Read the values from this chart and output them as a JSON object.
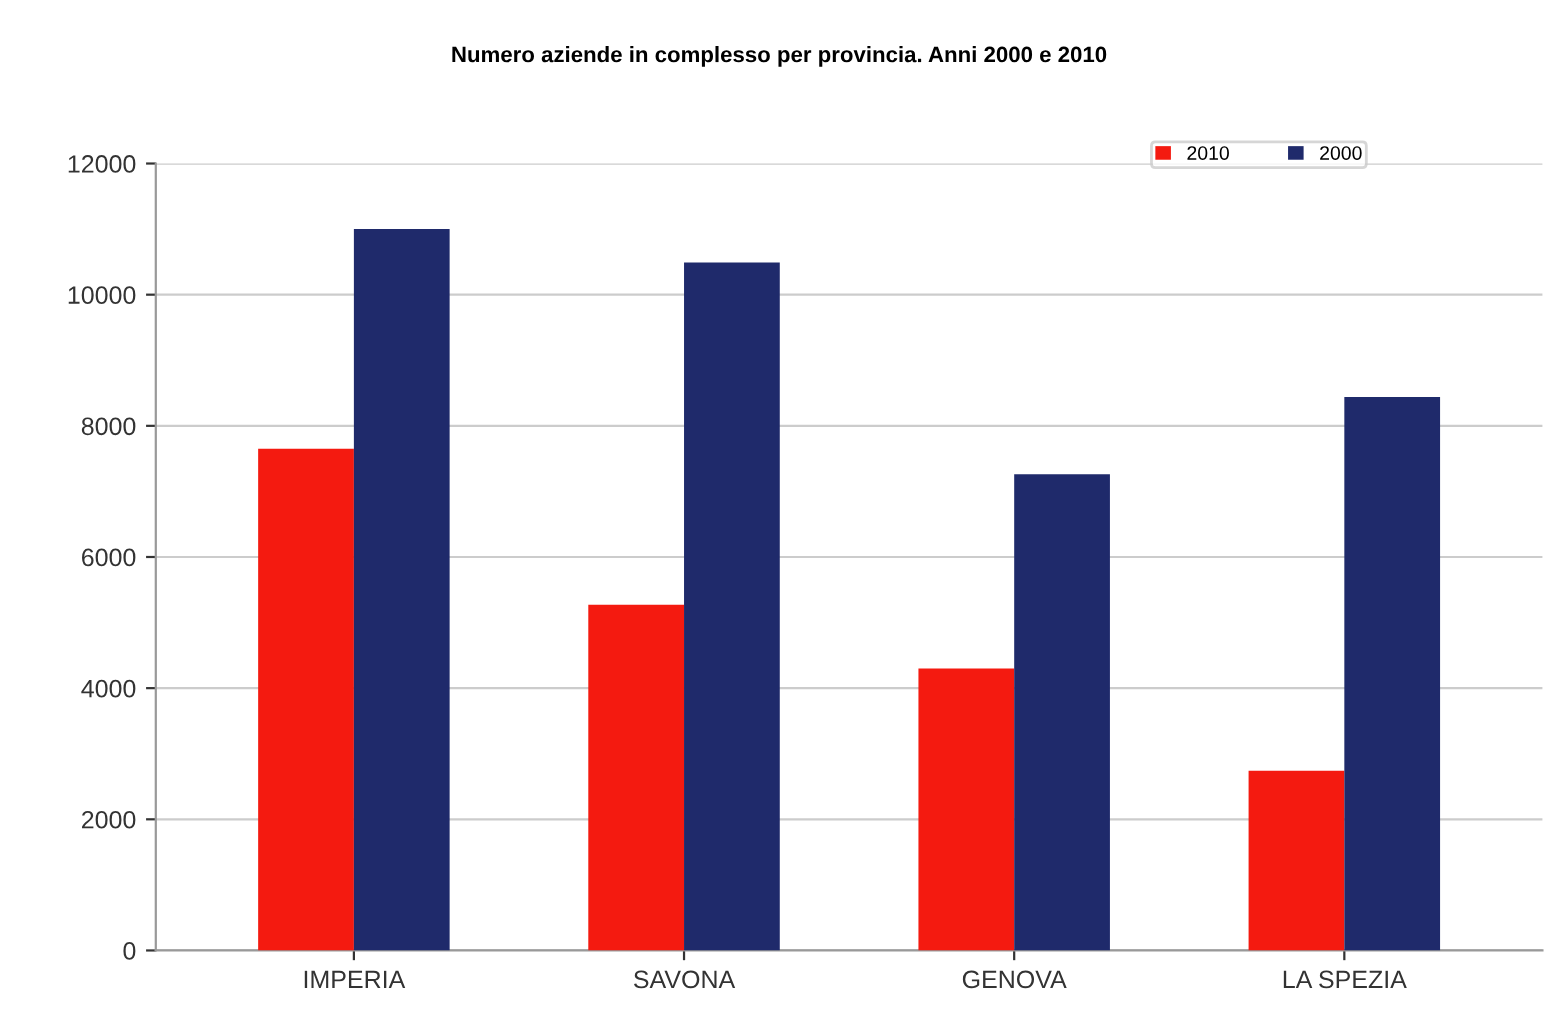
{
  "chart_data": {
    "type": "bar",
    "title": "Numero aziende in complesso per provincia. Anni 2000 e 2010",
    "categories": [
      "IMPERIA",
      "SAVONA",
      "GENOVA",
      "LA SPEZIA"
    ],
    "series": [
      {
        "name": "2010",
        "color": "#f41a10",
        "values": [
          7650,
          5270,
          4300,
          2740
        ]
      },
      {
        "name": "2000",
        "color": "#1f2a6b",
        "values": [
          11000,
          10490,
          7260,
          8440
        ]
      }
    ],
    "ylim": [
      0,
      12000
    ],
    "yticks": [
      0,
      2000,
      4000,
      6000,
      8000,
      10000,
      12000
    ],
    "grid": "y",
    "legend": "top right"
  }
}
